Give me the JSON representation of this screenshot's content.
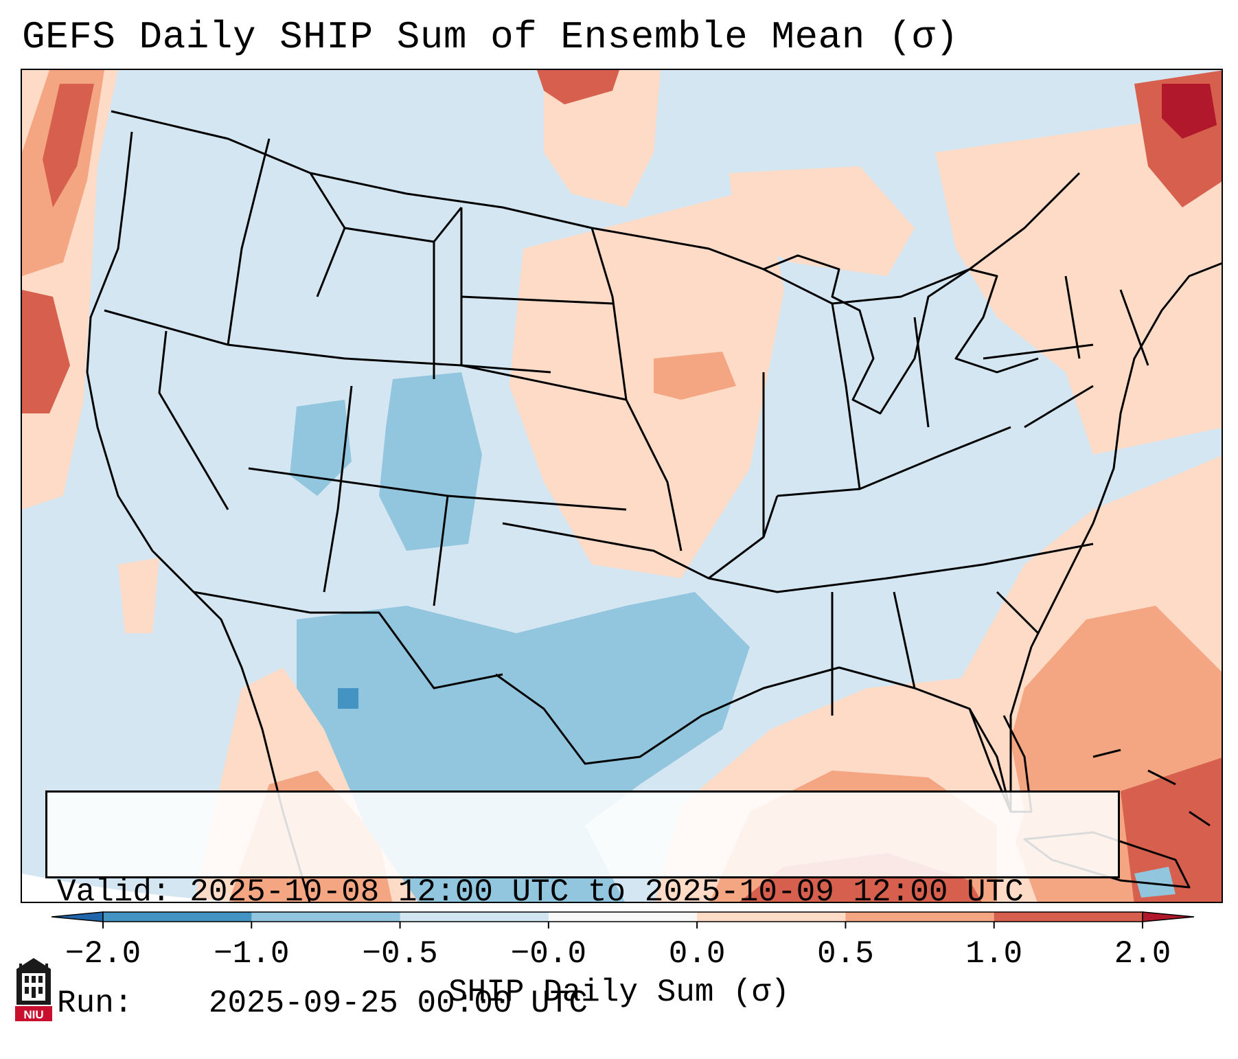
{
  "title": "GEFS Daily SHIP Sum of Ensemble Mean (σ)",
  "info": {
    "valid_label": "Valid:",
    "valid_value": "2025-10-08 12:00 UTC to 2025-10-09 12:00 UTC",
    "run_label": "Run:",
    "run_value": "2025-09-25 00:00 UTC"
  },
  "colorbar": {
    "label": "SHIP Daily Sum (σ)",
    "ticks": [
      "−2.0",
      "−1.0",
      "−0.5",
      "−0.0",
      "0.0",
      "0.5",
      "1.0",
      "2.0"
    ],
    "bin_colors": [
      "#4393c3",
      "#92c5de",
      "#d1e5f0",
      "#f7f7f7",
      "#fddbc7",
      "#f4a582",
      "#d6604d"
    ],
    "under_color": "#2166ac",
    "over_color": "#b2182b"
  },
  "map": {
    "region": "Continental United States",
    "palette": {
      "strong_neg": "#4393c3",
      "neg": "#92c5de",
      "weak_neg": "#d1e5f0",
      "neutral": "#f7f7f7",
      "weak_pos": "#fddbc7",
      "pos": "#f4a582",
      "strong_pos": "#d6604d",
      "extreme_pos": "#b2182b"
    }
  },
  "logo": {
    "icon": "niu-logo-icon",
    "text": "NIU"
  }
}
